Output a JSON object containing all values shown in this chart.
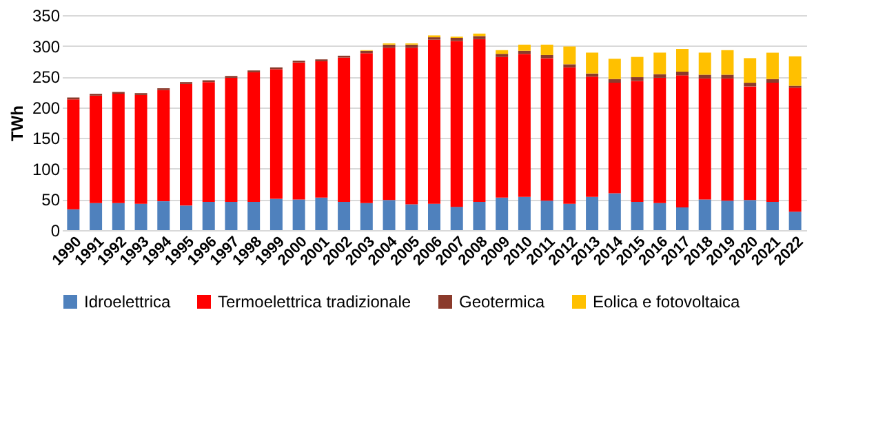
{
  "chart_data": {
    "type": "bar",
    "stacked": true,
    "ylabel": "TWh",
    "categories": [
      "1990",
      "1991",
      "1992",
      "1993",
      "1994",
      "1995",
      "1996",
      "1997",
      "1998",
      "1999",
      "2000",
      "2001",
      "2002",
      "2003",
      "2004",
      "2005",
      "2006",
      "2007",
      "2008",
      "2009",
      "2010",
      "2011",
      "2012",
      "2013",
      "2014",
      "2015",
      "2016",
      "2017",
      "2018",
      "2019",
      "2020",
      "2021",
      "2022"
    ],
    "series": [
      {
        "name": "Idroelettrica",
        "color": "#4f81bd",
        "values": [
          34,
          44,
          44,
          43,
          47,
          40,
          46,
          46,
          46,
          51,
          50,
          53,
          46,
          44,
          49,
          42,
          43,
          38,
          46,
          53,
          54,
          48,
          43,
          54,
          60,
          46,
          44,
          37,
          50,
          48,
          49,
          46,
          30
        ]
      },
      {
        "name": "Termoelettrica tradizionale",
        "color": "#ff0000",
        "values": [
          179,
          175,
          178,
          177,
          181,
          198,
          195,
          202,
          211,
          211,
          223,
          222,
          235,
          244,
          248,
          255,
          267,
          270,
          265,
          229,
          233,
          232,
          222,
          196,
          180,
          197,
          204,
          215,
          197,
          199,
          185,
          194,
          202
        ]
      },
      {
        "name": "Geotermica",
        "color": "#8b3a2b",
        "values": [
          3,
          3,
          3,
          3,
          3,
          3,
          3,
          3,
          3,
          3,
          3,
          3,
          3,
          4,
          5,
          5,
          4,
          5,
          5,
          5,
          5,
          5,
          5,
          5,
          6,
          6,
          6,
          6,
          6,
          6,
          6,
          6,
          3
        ]
      },
      {
        "name": "Eolica e fotovoltaica",
        "color": "#ffc000",
        "values": [
          0,
          0,
          0,
          0,
          0,
          0,
          0,
          0,
          0,
          0,
          0,
          0,
          0,
          1,
          2,
          2,
          3,
          2,
          4,
          6,
          10,
          17,
          29,
          34,
          33,
          33,
          35,
          37,
          36,
          40,
          40,
          43,
          48
        ]
      }
    ],
    "ylim": [
      0,
      350
    ],
    "yticks": [
      0,
      50,
      100,
      150,
      200,
      250,
      300,
      350
    ],
    "grid": "y",
    "legend": "bottom"
  }
}
